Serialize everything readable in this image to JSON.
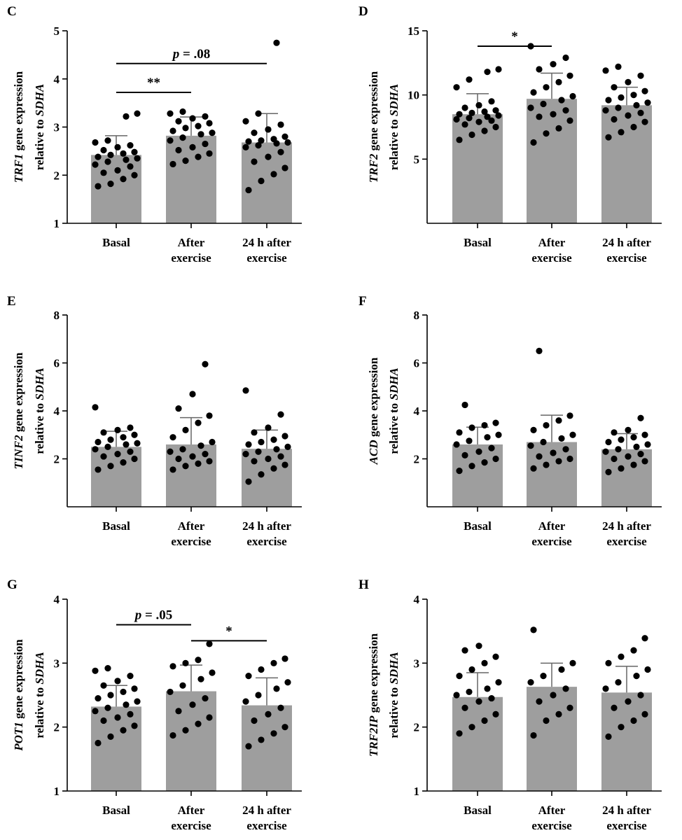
{
  "chart_data": [
    {
      "type": "bar",
      "panel": "C",
      "categories": [
        "Basal",
        "After exercise",
        "24 h after exercise"
      ],
      "category_lines": [
        [
          "Basal"
        ],
        [
          "After",
          "exercise"
        ],
        [
          "24 h after",
          "exercise"
        ]
      ],
      "ylabel_gene": "TRF1",
      "ylabel_line1": " gene expression",
      "ylabel_line2_prefix": "relative to ",
      "ylabel_line2_ref": "SDHA",
      "ylim": [
        1,
        5
      ],
      "yticks": [
        1,
        2,
        3,
        4,
        5
      ],
      "bar_color": "#9e9e9e",
      "values": [
        2.42,
        2.82,
        2.68
      ],
      "error_upper": [
        2.82,
        3.21,
        3.28
      ],
      "points": [
        [
          1.77,
          1.82,
          1.92,
          2.0,
          2.05,
          2.1,
          2.18,
          2.22,
          2.28,
          2.32,
          2.35,
          2.38,
          2.42,
          2.45,
          2.48,
          2.52,
          2.58,
          2.62,
          2.68,
          2.72,
          3.22,
          3.28
        ],
        [
          2.23,
          2.3,
          2.38,
          2.45,
          2.52,
          2.58,
          2.65,
          2.72,
          2.78,
          2.85,
          2.88,
          2.92,
          2.98,
          3.02,
          3.08,
          3.12,
          3.18,
          3.22,
          3.28,
          3.32
        ],
        [
          1.69,
          1.88,
          2.02,
          2.15,
          2.28,
          2.38,
          2.48,
          2.58,
          2.62,
          2.66,
          2.68,
          2.7,
          2.72,
          2.75,
          2.8,
          2.88,
          2.95,
          3.05,
          3.12,
          3.28,
          4.75
        ]
      ],
      "significance": [
        {
          "from": 0,
          "to": 1,
          "label": "**",
          "y": 3.72
        },
        {
          "from": 0,
          "to": 2,
          "label": "p = .08",
          "y": 4.32
        }
      ]
    },
    {
      "type": "bar",
      "panel": "D",
      "categories": [
        "Basal",
        "After exercise",
        "24 h after exercise"
      ],
      "category_lines": [
        [
          "Basal"
        ],
        [
          "After",
          "exercise"
        ],
        [
          "24 h after",
          "exercise"
        ]
      ],
      "ylabel_gene": "TRF2",
      "ylabel_line1": " gene expression",
      "ylabel_line2_prefix": "relative to ",
      "ylabel_line2_ref": "SDHA",
      "ylim": [
        0,
        15
      ],
      "yticks": [
        5,
        10,
        15
      ],
      "bar_color": "#9e9e9e",
      "values": [
        8.5,
        9.7,
        9.2
      ],
      "error_upper": [
        10.1,
        11.7,
        10.6
      ],
      "points": [
        [
          6.5,
          6.9,
          7.2,
          7.5,
          7.7,
          7.9,
          8.0,
          8.1,
          8.2,
          8.3,
          8.4,
          8.5,
          8.6,
          8.7,
          8.8,
          9.0,
          9.2,
          9.5,
          10.6,
          11.2,
          11.8,
          12.0
        ],
        [
          6.3,
          7.0,
          7.4,
          8.0,
          8.3,
          8.5,
          8.8,
          9.0,
          9.3,
          9.6,
          9.9,
          10.2,
          10.6,
          11.0,
          11.5,
          12.0,
          12.4,
          12.9,
          13.8
        ],
        [
          6.7,
          7.1,
          7.5,
          7.9,
          8.1,
          8.4,
          8.6,
          8.8,
          9.0,
          9.2,
          9.4,
          9.6,
          9.8,
          10.0,
          10.3,
          10.6,
          11.0,
          11.5,
          11.9,
          12.2
        ]
      ],
      "significance": [
        {
          "from": 0,
          "to": 1,
          "label": "*",
          "y": 13.8
        }
      ]
    },
    {
      "type": "bar",
      "panel": "E",
      "categories": [
        "Basal",
        "After exercise",
        "24 h after exercise"
      ],
      "category_lines": [
        [
          "Basal"
        ],
        [
          "After",
          "exercise"
        ],
        [
          "24 h after",
          "exercise"
        ]
      ],
      "ylabel_gene": "TINF2",
      "ylabel_line1": " gene expression",
      "ylabel_line2_prefix": "relative to ",
      "ylabel_line2_ref": "SDHA",
      "ylim": [
        0,
        8
      ],
      "yticks": [
        2,
        4,
        6,
        8
      ],
      "bar_color": "#9e9e9e",
      "values": [
        2.5,
        2.6,
        2.42
      ],
      "error_upper": [
        3.15,
        3.72,
        3.2
      ],
      "points": [
        [
          1.55,
          1.7,
          1.85,
          2.0,
          2.1,
          2.2,
          2.3,
          2.4,
          2.5,
          2.6,
          2.65,
          2.7,
          2.8,
          2.9,
          3.0,
          3.1,
          3.2,
          3.3,
          4.15
        ],
        [
          1.55,
          1.7,
          1.8,
          1.9,
          2.0,
          2.1,
          2.2,
          2.3,
          2.4,
          2.55,
          2.7,
          2.9,
          3.2,
          3.5,
          3.8,
          4.1,
          4.7,
          5.95
        ],
        [
          1.05,
          1.35,
          1.6,
          1.75,
          1.9,
          2.0,
          2.1,
          2.2,
          2.3,
          2.4,
          2.5,
          2.6,
          2.7,
          2.8,
          2.95,
          3.1,
          3.3,
          3.85,
          4.85
        ]
      ],
      "significance": []
    },
    {
      "type": "bar",
      "panel": "F",
      "categories": [
        "Basal",
        "After exercise",
        "24 h after exercise"
      ],
      "category_lines": [
        [
          "Basal"
        ],
        [
          "After",
          "exercise"
        ],
        [
          "24 h after",
          "exercise"
        ]
      ],
      "ylabel_gene": "ACD",
      "ylabel_line1": " gene expression",
      "ylabel_line2_prefix": "relative to ",
      "ylabel_line2_ref": "SDHA",
      "ylim": [
        0,
        8
      ],
      "yticks": [
        2,
        4,
        6,
        8
      ],
      "bar_color": "#9e9e9e",
      "values": [
        2.6,
        2.7,
        2.4
      ],
      "error_upper": [
        3.32,
        3.82,
        3.05
      ],
      "points": [
        [
          1.5,
          1.7,
          1.85,
          2.0,
          2.15,
          2.3,
          2.45,
          2.6,
          2.75,
          2.9,
          3.0,
          3.1,
          3.3,
          3.4,
          3.5,
          4.25
        ],
        [
          1.6,
          1.75,
          1.9,
          2.0,
          2.1,
          2.25,
          2.4,
          2.55,
          2.7,
          2.85,
          3.0,
          3.2,
          3.4,
          3.6,
          3.8,
          6.5
        ],
        [
          1.45,
          1.6,
          1.75,
          1.9,
          2.0,
          2.1,
          2.2,
          2.3,
          2.4,
          2.5,
          2.6,
          2.7,
          2.8,
          2.9,
          3.0,
          3.1,
          3.2,
          3.7
        ]
      ],
      "significance": []
    },
    {
      "type": "bar",
      "panel": "G",
      "categories": [
        "Basal",
        "After exercise",
        "24 h after exercise"
      ],
      "category_lines": [
        [
          "Basal"
        ],
        [
          "After",
          "exercise"
        ],
        [
          "24 h after",
          "exercise"
        ]
      ],
      "ylabel_gene": "POT1",
      "ylabel_line1": " gene expression",
      "ylabel_line2_prefix": "relative to ",
      "ylabel_line2_ref": "SDHA",
      "ylim": [
        1,
        4
      ],
      "yticks": [
        1,
        2,
        3,
        4
      ],
      "bar_color": "#9e9e9e",
      "values": [
        2.32,
        2.56,
        2.34
      ],
      "error_upper": [
        2.65,
        2.97,
        2.77
      ],
      "points": [
        [
          1.75,
          1.85,
          1.95,
          2.02,
          2.1,
          2.15,
          2.2,
          2.25,
          2.3,
          2.35,
          2.4,
          2.45,
          2.5,
          2.55,
          2.6,
          2.65,
          2.72,
          2.8,
          2.88,
          2.92
        ],
        [
          1.87,
          1.95,
          2.05,
          2.15,
          2.25,
          2.35,
          2.45,
          2.55,
          2.65,
          2.75,
          2.85,
          2.95,
          3.0,
          3.05,
          3.3
        ],
        [
          1.7,
          1.8,
          1.9,
          2.0,
          2.1,
          2.2,
          2.3,
          2.4,
          2.5,
          2.6,
          2.7,
          2.8,
          2.9,
          3.0,
          3.07
        ]
      ],
      "significance": [
        {
          "from": 0,
          "to": 1,
          "label": "p = .05",
          "y": 3.6
        },
        {
          "from": 1,
          "to": 2,
          "label": "*",
          "y": 3.35
        }
      ]
    },
    {
      "type": "bar",
      "panel": "H",
      "categories": [
        "Basal",
        "After exercise",
        "24 h after exercise"
      ],
      "category_lines": [
        [
          "Basal"
        ],
        [
          "After",
          "exercise"
        ],
        [
          "24 h after",
          "exercise"
        ]
      ],
      "ylabel_gene": "TRF2IP",
      "ylabel_line1": " gene expression",
      "ylabel_line2_prefix": "relative to ",
      "ylabel_line2_ref": "SDHA",
      "ylim": [
        1,
        4
      ],
      "yticks": [
        1,
        2,
        3,
        4
      ],
      "bar_color": "#9e9e9e",
      "values": [
        2.47,
        2.63,
        2.54
      ],
      "error_upper": [
        2.85,
        3.0,
        2.95
      ],
      "points": [
        [
          1.9,
          2.0,
          2.1,
          2.2,
          2.3,
          2.4,
          2.45,
          2.5,
          2.55,
          2.6,
          2.7,
          2.8,
          2.9,
          3.0,
          3.1,
          3.2,
          3.27
        ],
        [
          1.87,
          2.1,
          2.2,
          2.3,
          2.4,
          2.5,
          2.6,
          2.7,
          2.8,
          2.9,
          3.0,
          3.52
        ],
        [
          1.85,
          2.0,
          2.1,
          2.2,
          2.3,
          2.4,
          2.5,
          2.6,
          2.7,
          2.8,
          2.9,
          3.0,
          3.1,
          3.2,
          3.39
        ]
      ],
      "significance": []
    }
  ]
}
